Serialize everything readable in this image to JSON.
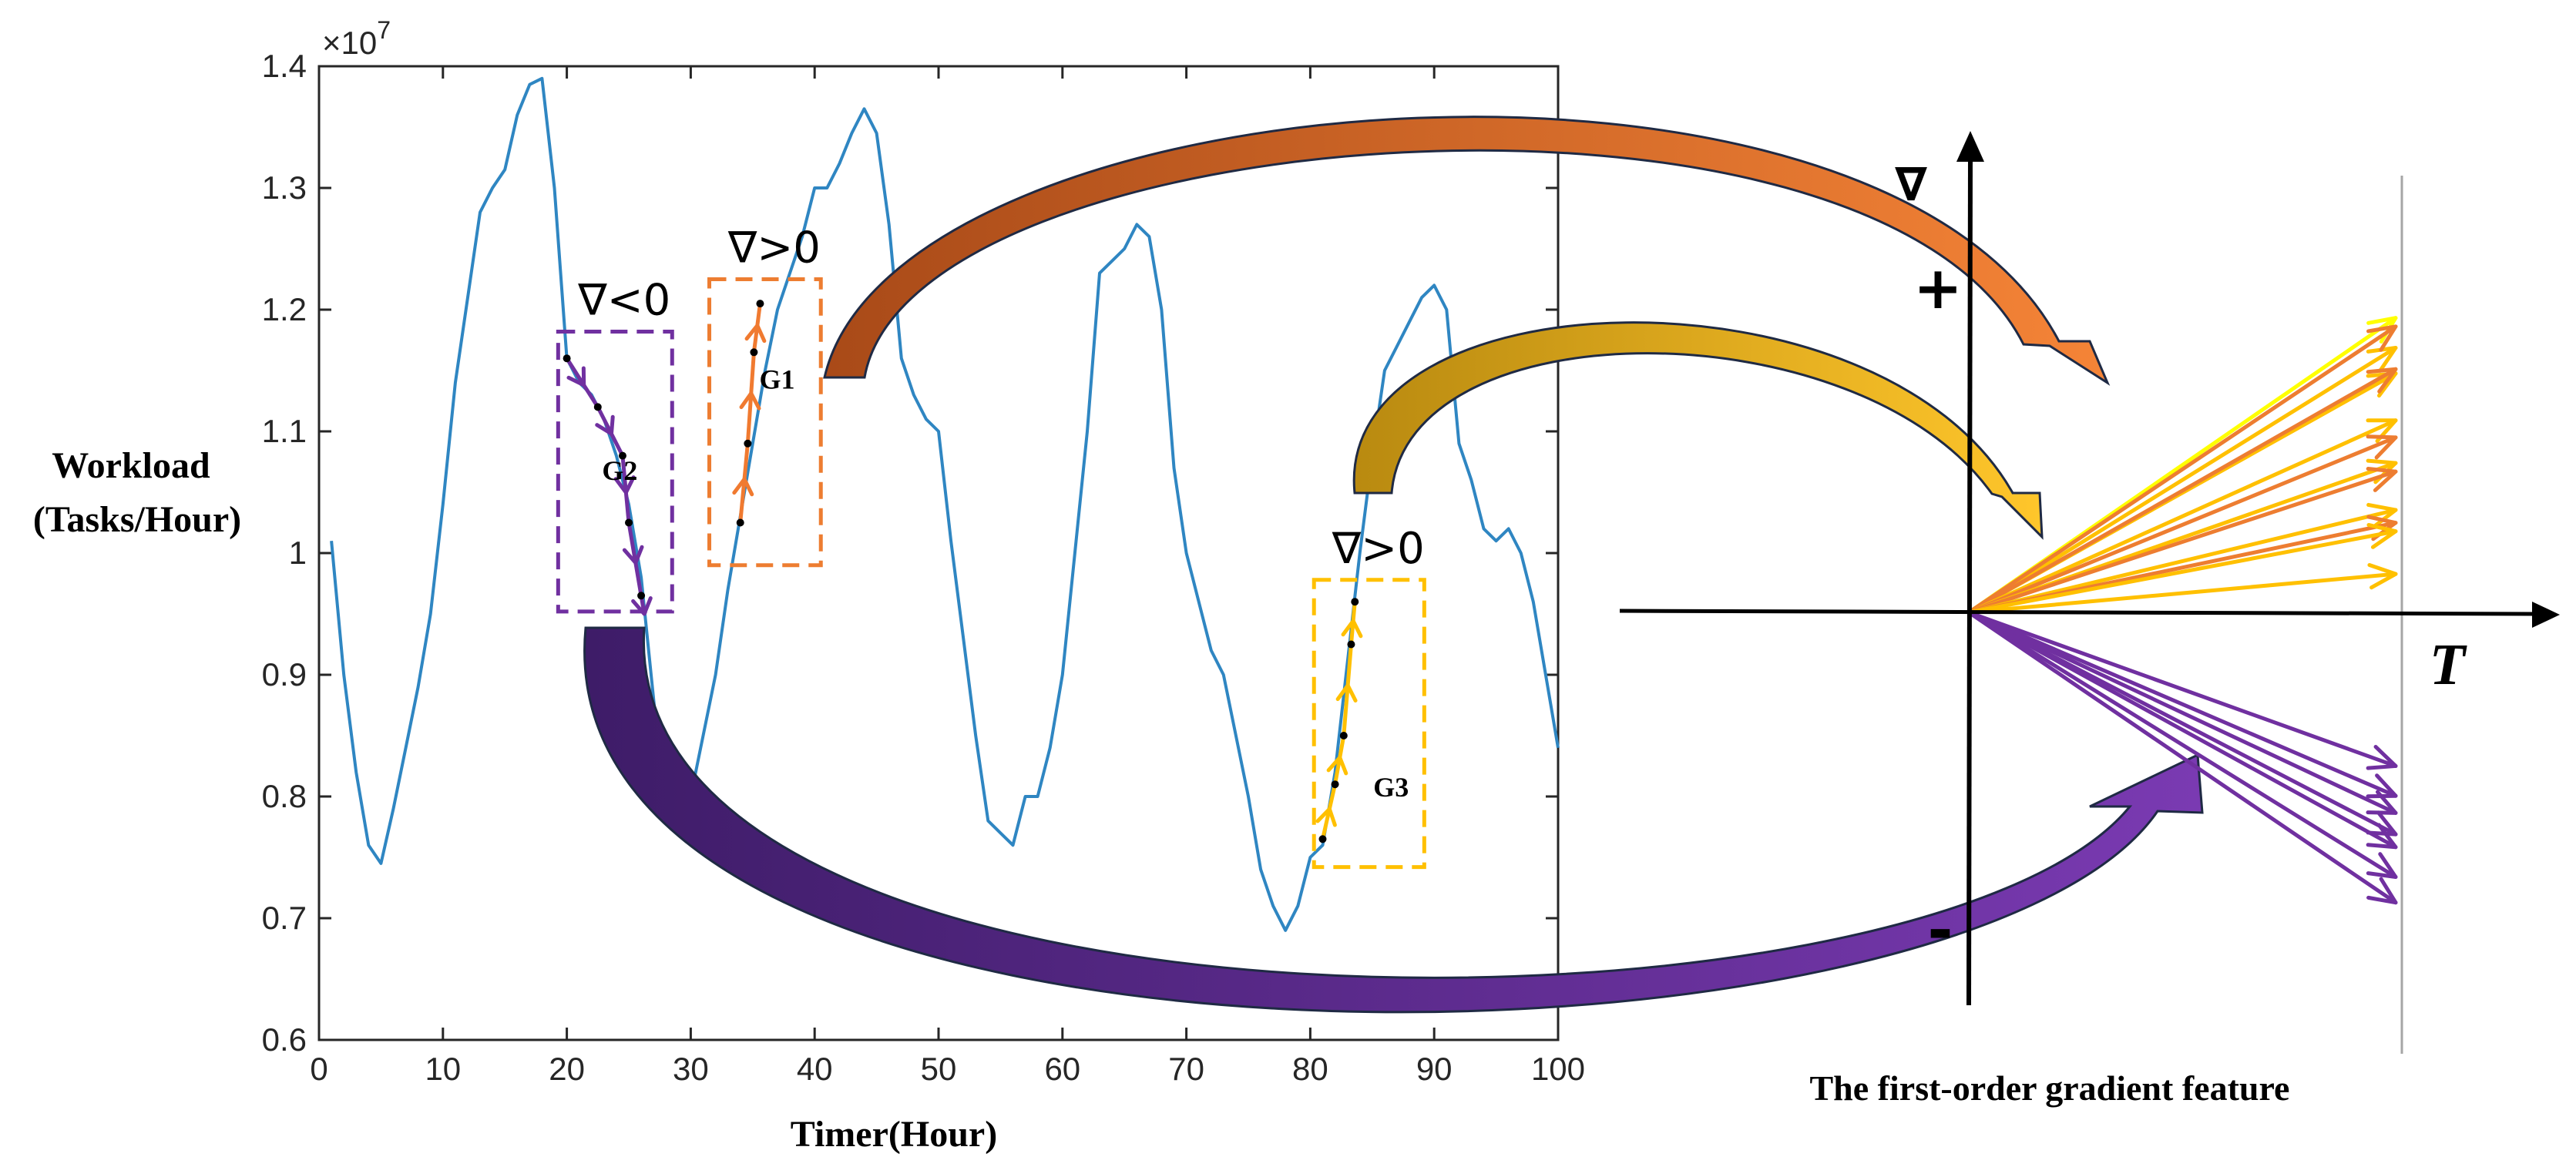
{
  "chart_data": {
    "type": "line",
    "title": "",
    "xlabel": "Timer(Hour)",
    "ylabel": [
      "Workload",
      "(Tasks/Hour)"
    ],
    "xlim": [
      0,
      100
    ],
    "ylim": [
      0.6,
      1.4
    ],
    "y_multiplier": "×10",
    "y_multiplier_exp": "7",
    "x_ticks": [
      "0",
      "10",
      "20",
      "30",
      "40",
      "50",
      "60",
      "70",
      "80",
      "90",
      "100"
    ],
    "y_ticks": [
      "0.6",
      "0.7",
      "0.8",
      "0.9",
      "1",
      "1.1",
      "1.2",
      "1.3",
      "1.4"
    ],
    "series": [
      {
        "name": "workload",
        "color": "#2f86c2",
        "x": [
          1,
          2,
          3,
          4,
          5,
          6,
          7,
          8,
          9,
          10,
          11,
          12,
          13,
          14,
          15,
          16,
          17,
          18,
          19,
          20,
          21,
          22,
          23,
          24,
          25,
          26,
          27,
          28,
          29,
          30,
          31,
          32,
          33,
          34,
          35,
          36,
          37,
          38,
          39,
          40,
          41,
          42,
          43,
          44,
          45,
          46,
          47,
          48,
          49,
          50,
          51,
          52,
          53,
          54,
          55,
          56,
          57,
          58,
          59,
          60,
          61,
          62,
          63,
          64,
          65,
          66,
          67,
          68,
          69,
          70,
          71,
          72,
          73,
          74,
          75,
          76,
          77,
          78,
          79,
          80,
          81,
          82,
          83,
          84,
          85,
          86,
          87,
          88,
          89,
          90,
          91,
          92,
          93,
          94,
          95,
          96,
          97,
          98,
          99,
          100
        ],
        "y": [
          1.01,
          0.9,
          0.82,
          0.76,
          0.745,
          0.79,
          0.84,
          0.89,
          0.95,
          1.04,
          1.14,
          1.21,
          1.28,
          1.3,
          1.315,
          1.36,
          1.385,
          1.39,
          1.3,
          1.16,
          1.14,
          1.13,
          1.11,
          1.08,
          1.04,
          0.98,
          0.88,
          0.78,
          0.77,
          0.8,
          0.85,
          0.9,
          0.97,
          1.03,
          1.09,
          1.15,
          1.2,
          1.23,
          1.26,
          1.3,
          1.3,
          1.32,
          1.345,
          1.365,
          1.345,
          1.27,
          1.16,
          1.13,
          1.11,
          1.1,
          1.01,
          0.93,
          0.85,
          0.78,
          0.77,
          0.76,
          0.8,
          0.8,
          0.84,
          0.9,
          1.0,
          1.1,
          1.23,
          1.24,
          1.25,
          1.27,
          1.26,
          1.2,
          1.07,
          1.0,
          0.96,
          0.92,
          0.9,
          0.85,
          0.8,
          0.74,
          0.71,
          0.69,
          0.71,
          0.75,
          0.76,
          0.82,
          0.91,
          1.0,
          1.08,
          1.15,
          1.17,
          1.19,
          1.21,
          1.22,
          1.2,
          1.09,
          1.06,
          1.02,
          1.01,
          1.02,
          1.0,
          0.96,
          0.9,
          0.84
        ]
      }
    ],
    "groups": [
      {
        "label": "G1",
        "annotation": "∇>0",
        "color": "#f07a30",
        "box_color": "#ed7d31",
        "x_range": [
          31.5,
          40.5
        ],
        "y_range": [
          0.99,
          1.225
        ],
        "points": [
          [
            34,
            1.025
          ],
          [
            34.6,
            1.09
          ],
          [
            35.1,
            1.165
          ],
          [
            35.6,
            1.205
          ]
        ]
      },
      {
        "label": "G2",
        "annotation": "∇<0",
        "color": "#7030a0",
        "box_color": "#7030a0",
        "x_range": [
          19.3,
          28.5
        ],
        "y_range": [
          0.952,
          1.182
        ],
        "points": [
          [
            20,
            1.16
          ],
          [
            22.5,
            1.12
          ],
          [
            24.5,
            1.08
          ],
          [
            25,
            1.025
          ],
          [
            26,
            0.965
          ]
        ]
      },
      {
        "label": "G3",
        "annotation": "∇>0",
        "color": "#ffc000",
        "box_color": "#ffc000",
        "x_range": [
          80.3,
          89.2
        ],
        "y_range": [
          0.742,
          0.978
        ],
        "points": [
          [
            81,
            0.765
          ],
          [
            82,
            0.81
          ],
          [
            82.7,
            0.85
          ],
          [
            83.3,
            0.925
          ],
          [
            83.6,
            0.96
          ]
        ]
      }
    ]
  },
  "feature_panel": {
    "axis_label_gradient": "∇",
    "plus": "+",
    "minus": "-",
    "axis_label_time": "T",
    "caption": "The first-order gradient feature",
    "positive_vectors": [
      {
        "color": "#ffff00",
        "slope": 0.69
      },
      {
        "color": "#ffc000",
        "slope": 0.62
      },
      {
        "color": "#ed7d31",
        "slope": 0.67
      },
      {
        "color": "#ffc000",
        "slope": 0.56
      },
      {
        "color": "#ed7d31",
        "slope": 0.57
      },
      {
        "color": "#ffc000",
        "slope": 0.45
      },
      {
        "color": "#ed7d31",
        "slope": 0.41
      },
      {
        "color": "#ffc000",
        "slope": 0.35
      },
      {
        "color": "#ed7d31",
        "slope": 0.33
      },
      {
        "color": "#ffc000",
        "slope": 0.24
      },
      {
        "color": "#ed7d31",
        "slope": 0.21
      },
      {
        "color": "#ffc000",
        "slope": 0.19
      },
      {
        "color": "#ffc000",
        "slope": 0.09
      }
    ],
    "negative_vectors": [
      {
        "color": "#7030a0",
        "slope": -0.36
      },
      {
        "color": "#7030a0",
        "slope": -0.43
      },
      {
        "color": "#7030a0",
        "slope": -0.47
      },
      {
        "color": "#7030a0",
        "slope": -0.52
      },
      {
        "color": "#7030a0",
        "slope": -0.55
      },
      {
        "color": "#7030a0",
        "slope": -0.62
      },
      {
        "color": "#7030a0",
        "slope": -0.68
      }
    ]
  },
  "connectors": [
    {
      "name": "g1-connector-arrow",
      "color": "#b8531c"
    },
    {
      "name": "g3-connector-arrow",
      "color": "#d4a317"
    },
    {
      "name": "g2-connector-arrow",
      "color": "#5a2b88"
    }
  ]
}
